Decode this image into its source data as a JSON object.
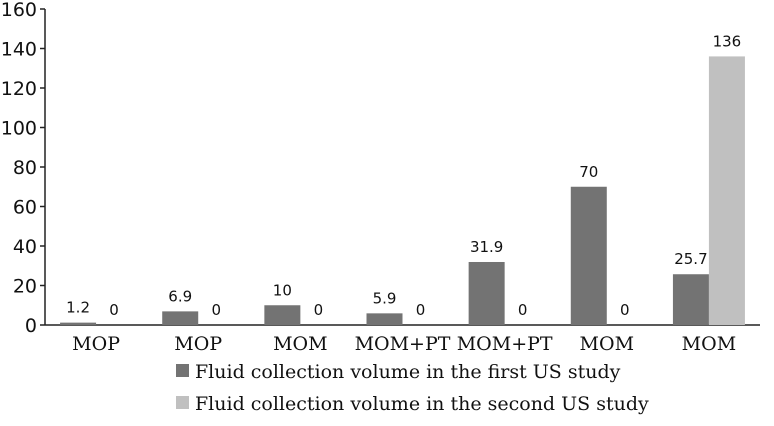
{
  "chart_data": {
    "type": "bar",
    "categories": [
      "MOP",
      "MOP",
      "MOM",
      "MOM+PT",
      "MOM+PT",
      "MOM",
      "MOM"
    ],
    "series": [
      {
        "name": "Fluid collection volume in the first US study",
        "values": [
          1.2,
          6.9,
          10,
          5.9,
          31.9,
          70,
          25.7
        ],
        "labels": [
          "1.2",
          "6.9",
          "10",
          "5.9",
          "31.9",
          "70",
          "25.7"
        ],
        "color": "#737373"
      },
      {
        "name": "Fluid collection volume in the second US study",
        "values": [
          0,
          0,
          0,
          0,
          0,
          0,
          136
        ],
        "labels": [
          "0",
          "0",
          "0",
          "0",
          "0",
          "0",
          "136"
        ],
        "color": "#c0c0c0"
      }
    ],
    "yticks": [
      "0",
      "20",
      "40",
      "60",
      "80",
      "100",
      "120",
      "140",
      "160"
    ],
    "ylim": [
      0,
      160
    ],
    "grid": false,
    "legend_position": "bottom"
  }
}
